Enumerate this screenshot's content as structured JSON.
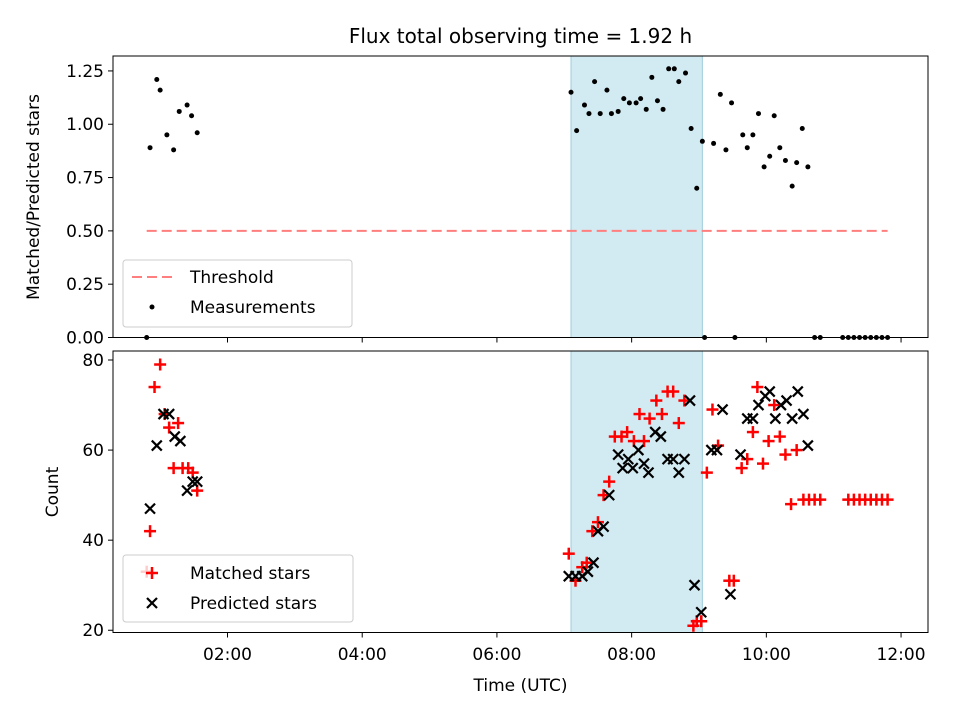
{
  "figure": {
    "title": "Flux total observing time = 1.92 h"
  },
  "colors": {
    "shade": "#add8e6",
    "threshold": "#ff7f7f",
    "measurement": "#000000",
    "matched": "#ff0000",
    "predicted": "#000000"
  },
  "chart_data": [
    {
      "type": "scatter",
      "title": "Flux total observing time = 1.92 h",
      "ylabel": "Matched/Predicted stars",
      "xlim": [
        "00:18",
        "12:24"
      ],
      "ylim": [
        0,
        1.32
      ],
      "yticks": [
        "0.00",
        "0.25",
        "0.50",
        "0.75",
        "1.00",
        "1.25"
      ],
      "shaded_span": [
        "07:06",
        "09:03"
      ],
      "legend": {
        "position": "lower-left",
        "entries": [
          "Threshold",
          "Measurements"
        ]
      },
      "threshold": {
        "name": "Threshold",
        "value": 0.5,
        "x_range": [
          "00:48",
          "11:48"
        ]
      },
      "measurements": {
        "name": "Measurements",
        "points": [
          [
            "00:48",
            0.0
          ],
          [
            "00:51",
            0.89
          ],
          [
            "00:57",
            1.21
          ],
          [
            "01:00",
            1.16
          ],
          [
            "01:06",
            0.95
          ],
          [
            "01:12",
            0.88
          ],
          [
            "01:17",
            1.06
          ],
          [
            "01:24",
            1.09
          ],
          [
            "01:28",
            1.04
          ],
          [
            "01:33",
            0.96
          ],
          [
            "07:06",
            1.15
          ],
          [
            "07:11",
            0.97
          ],
          [
            "07:18",
            1.09
          ],
          [
            "07:22",
            1.05
          ],
          [
            "07:27",
            1.2
          ],
          [
            "07:32",
            1.05
          ],
          [
            "07:38",
            1.16
          ],
          [
            "07:42",
            1.05
          ],
          [
            "07:48",
            1.06
          ],
          [
            "07:53",
            1.12
          ],
          [
            "07:58",
            1.1
          ],
          [
            "08:04",
            1.1
          ],
          [
            "08:08",
            1.12
          ],
          [
            "08:13",
            1.07
          ],
          [
            "08:18",
            1.22
          ],
          [
            "08:23",
            1.11
          ],
          [
            "08:28",
            1.07
          ],
          [
            "08:33",
            1.26
          ],
          [
            "08:38",
            1.26
          ],
          [
            "08:42",
            1.2
          ],
          [
            "08:48",
            1.24
          ],
          [
            "08:53",
            0.98
          ],
          [
            "08:58",
            0.7
          ],
          [
            "09:03",
            0.92
          ],
          [
            "09:05",
            0.0
          ],
          [
            "09:13",
            0.91
          ],
          [
            "09:19",
            1.14
          ],
          [
            "09:24",
            0.88
          ],
          [
            "09:29",
            1.1
          ],
          [
            "09:32",
            0.0
          ],
          [
            "09:39",
            0.95
          ],
          [
            "09:43",
            0.89
          ],
          [
            "09:48",
            0.95
          ],
          [
            "09:53",
            1.05
          ],
          [
            "09:58",
            0.8
          ],
          [
            "10:03",
            0.85
          ],
          [
            "10:07",
            1.04
          ],
          [
            "10:12",
            0.89
          ],
          [
            "10:17",
            0.83
          ],
          [
            "10:23",
            0.71
          ],
          [
            "10:27",
            0.82
          ],
          [
            "10:32",
            0.98
          ],
          [
            "10:37",
            0.8
          ],
          [
            "10:43",
            0.0
          ],
          [
            "10:48",
            0.0
          ],
          [
            "11:08",
            0.0
          ],
          [
            "11:13",
            0.0
          ],
          [
            "11:18",
            0.0
          ],
          [
            "11:23",
            0.0
          ],
          [
            "11:28",
            0.0
          ],
          [
            "11:33",
            0.0
          ],
          [
            "11:38",
            0.0
          ],
          [
            "11:43",
            0.0
          ],
          [
            "11:48",
            0.0
          ]
        ]
      }
    },
    {
      "type": "scatter",
      "xlabel": "Time (UTC)",
      "ylabel": "Count",
      "xlim": [
        "00:18",
        "12:24"
      ],
      "ylim": [
        19.5,
        82
      ],
      "yticks": [
        "20",
        "40",
        "60",
        "80"
      ],
      "xticks": [
        "02:00",
        "04:00",
        "06:00",
        "08:00",
        "10:00",
        "12:00"
      ],
      "shaded_span": [
        "07:06",
        "09:03"
      ],
      "legend": {
        "position": "lower-left",
        "entries": [
          "Matched stars",
          "Predicted stars"
        ]
      },
      "series": [
        {
          "name": "Matched stars",
          "marker": "plus",
          "points": [
            [
              "00:48",
              33
            ],
            [
              "00:51",
              42
            ],
            [
              "00:55",
              74
            ],
            [
              "01:00",
              79
            ],
            [
              "01:04",
              68
            ],
            [
              "01:08",
              65
            ],
            [
              "01:12",
              56
            ],
            [
              "01:16",
              66
            ],
            [
              "01:20",
              56
            ],
            [
              "01:25",
              56
            ],
            [
              "01:29",
              55
            ],
            [
              "01:33",
              51
            ],
            [
              "07:04",
              37
            ],
            [
              "07:10",
              31
            ],
            [
              "07:16",
              34
            ],
            [
              "07:20",
              35
            ],
            [
              "07:25",
              42
            ],
            [
              "07:30",
              44
            ],
            [
              "07:35",
              50
            ],
            [
              "07:40",
              53
            ],
            [
              "07:45",
              63
            ],
            [
              "07:51",
              63
            ],
            [
              "07:56",
              64
            ],
            [
              "08:02",
              62
            ],
            [
              "08:07",
              68
            ],
            [
              "08:11",
              62
            ],
            [
              "08:16",
              67
            ],
            [
              "08:22",
              71
            ],
            [
              "08:27",
              68
            ],
            [
              "08:32",
              73
            ],
            [
              "08:37",
              73
            ],
            [
              "08:42",
              66
            ],
            [
              "08:47",
              71
            ],
            [
              "08:55",
              21
            ],
            [
              "08:58",
              22
            ],
            [
              "09:02",
              22
            ],
            [
              "09:07",
              55
            ],
            [
              "09:12",
              69
            ],
            [
              "09:17",
              61
            ],
            [
              "09:27",
              31
            ],
            [
              "09:31",
              31
            ],
            [
              "09:38",
              56
            ],
            [
              "09:43",
              58
            ],
            [
              "09:48",
              64
            ],
            [
              "09:52",
              74
            ],
            [
              "09:57",
              57
            ],
            [
              "10:02",
              62
            ],
            [
              "10:07",
              70
            ],
            [
              "10:12",
              63
            ],
            [
              "10:17",
              59
            ],
            [
              "10:22",
              48
            ],
            [
              "10:27",
              60
            ],
            [
              "10:33",
              49
            ],
            [
              "10:38",
              49
            ],
            [
              "10:43",
              49
            ],
            [
              "10:48",
              49
            ],
            [
              "11:13",
              49
            ],
            [
              "11:18",
              49
            ],
            [
              "11:23",
              49
            ],
            [
              "11:28",
              49
            ],
            [
              "11:33",
              49
            ],
            [
              "11:38",
              49
            ],
            [
              "11:43",
              49
            ],
            [
              "11:48",
              49
            ]
          ]
        },
        {
          "name": "Predicted stars",
          "marker": "x",
          "points": [
            [
              "00:51",
              47
            ],
            [
              "00:57",
              61
            ],
            [
              "01:03",
              68
            ],
            [
              "01:08",
              68
            ],
            [
              "01:13",
              63
            ],
            [
              "01:18",
              62
            ],
            [
              "01:24",
              51
            ],
            [
              "01:29",
              53
            ],
            [
              "01:33",
              53
            ],
            [
              "07:04",
              32
            ],
            [
              "07:10",
              32
            ],
            [
              "07:16",
              32
            ],
            [
              "07:21",
              33
            ],
            [
              "07:26",
              35
            ],
            [
              "07:30",
              42
            ],
            [
              "07:35",
              43
            ],
            [
              "07:40",
              50
            ],
            [
              "07:48",
              59
            ],
            [
              "07:52",
              56
            ],
            [
              "07:57",
              58
            ],
            [
              "08:01",
              56
            ],
            [
              "08:06",
              60
            ],
            [
              "08:11",
              57
            ],
            [
              "08:15",
              55
            ],
            [
              "08:21",
              64
            ],
            [
              "08:26",
              63
            ],
            [
              "08:32",
              58
            ],
            [
              "08:37",
              58
            ],
            [
              "08:42",
              55
            ],
            [
              "08:47",
              58
            ],
            [
              "08:52",
              71
            ],
            [
              "08:56",
              30
            ],
            [
              "09:02",
              24
            ],
            [
              "09:11",
              60
            ],
            [
              "09:16",
              60
            ],
            [
              "09:21",
              69
            ],
            [
              "09:28",
              28
            ],
            [
              "09:37",
              59
            ],
            [
              "09:43",
              67
            ],
            [
              "09:48",
              67
            ],
            [
              "09:53",
              70
            ],
            [
              "09:59",
              72
            ],
            [
              "10:03",
              73
            ],
            [
              "10:08",
              67
            ],
            [
              "10:13",
              70
            ],
            [
              "10:18",
              71
            ],
            [
              "10:23",
              67
            ],
            [
              "10:28",
              73
            ],
            [
              "10:33",
              68
            ],
            [
              "10:37",
              61
            ]
          ]
        }
      ]
    }
  ]
}
